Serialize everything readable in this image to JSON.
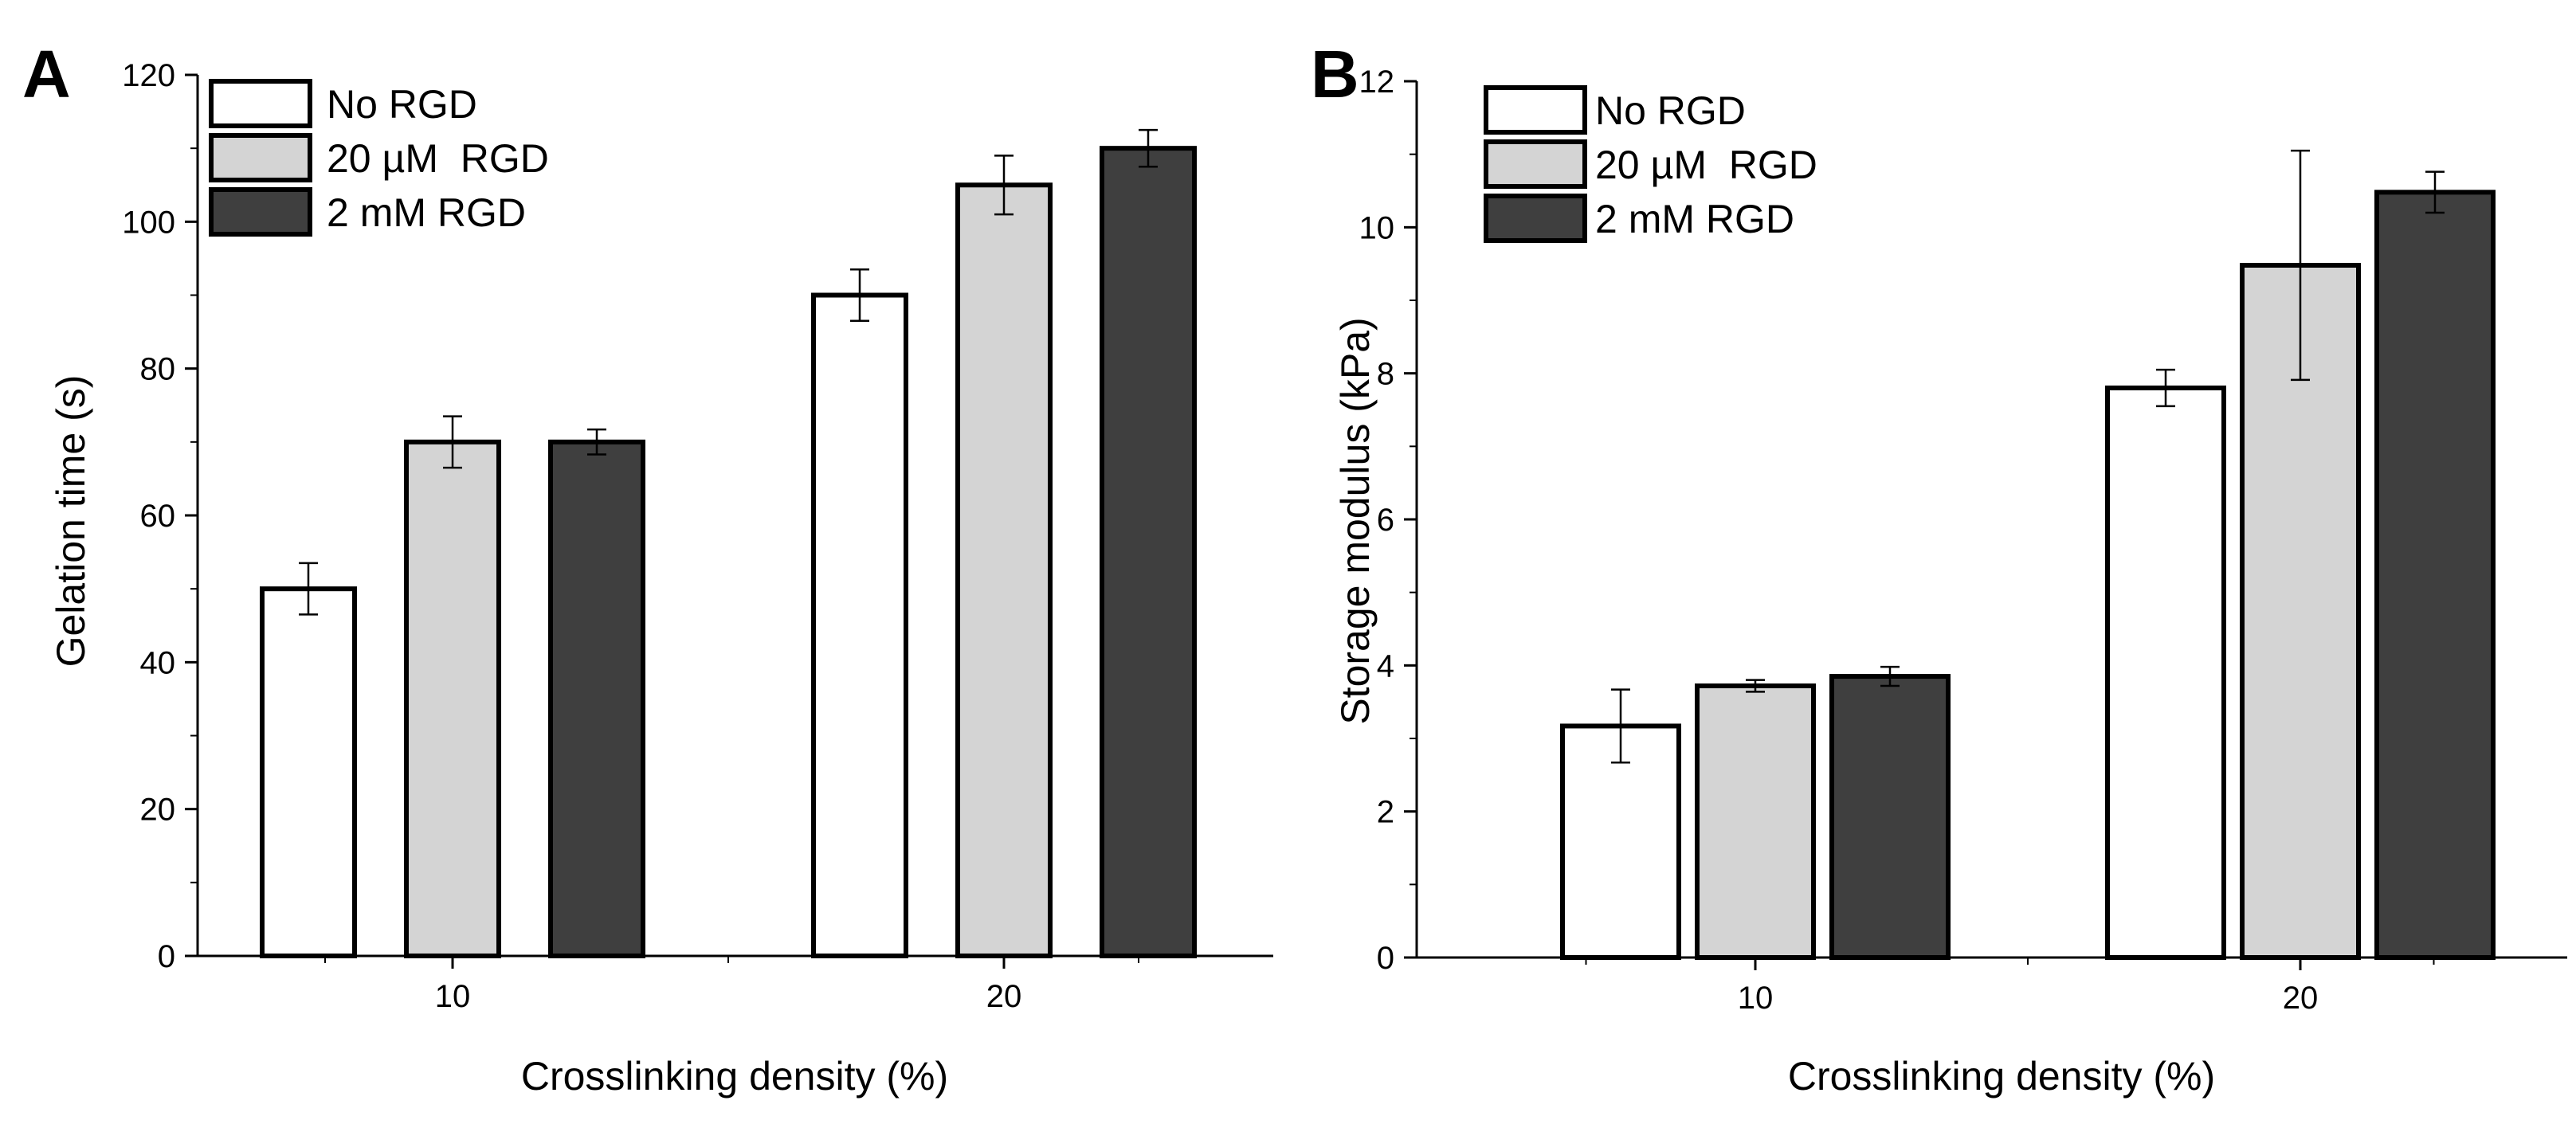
{
  "figure": {
    "panels": [
      "A",
      "B"
    ]
  },
  "colors": {
    "No RGD": "#ffffff",
    "20 µM  RGD": "#d4d4d4",
    "2 mM RGD": "#3f3f3f",
    "axis": "#000000"
  },
  "chart_data": [
    {
      "panel": "A",
      "type": "bar",
      "title": "",
      "categories": [
        "10",
        "20"
      ],
      "xlabel": "Crosslinking density (%)",
      "ylabel": "Gelation time (s)",
      "ylim": [
        0,
        120
      ],
      "yticks": [
        "0",
        "20",
        "40",
        "60",
        "80",
        "100",
        "120"
      ],
      "legend_position": "top-left",
      "series": [
        {
          "name": "No RGD",
          "values": [
            50,
            90
          ],
          "errors": [
            3.5,
            3.5
          ]
        },
        {
          "name": "20 µM  RGD",
          "values": [
            70,
            105
          ],
          "errors": [
            3.5,
            4.0
          ]
        },
        {
          "name": "2 mM RGD",
          "values": [
            70,
            110
          ],
          "errors": [
            1.7,
            2.5
          ]
        }
      ]
    },
    {
      "panel": "B",
      "type": "bar",
      "title": "",
      "categories": [
        "10",
        "20"
      ],
      "xlabel": "Crosslinking density (%)",
      "ylabel": "Storage modulus (kPa)",
      "ylim": [
        0,
        12
      ],
      "yticks": [
        "0",
        "2",
        "4",
        "6",
        "8",
        "10",
        "12"
      ],
      "legend_position": "top-left",
      "series": [
        {
          "name": "No RGD",
          "values": [
            3.17,
            7.8
          ],
          "errors": [
            0.5,
            0.25
          ]
        },
        {
          "name": "20 µM  RGD",
          "values": [
            3.72,
            9.48
          ],
          "errors": [
            0.08,
            1.57
          ]
        },
        {
          "name": "2 mM RGD",
          "values": [
            3.85,
            10.48
          ],
          "errors": [
            0.13,
            0.28
          ]
        }
      ]
    }
  ]
}
